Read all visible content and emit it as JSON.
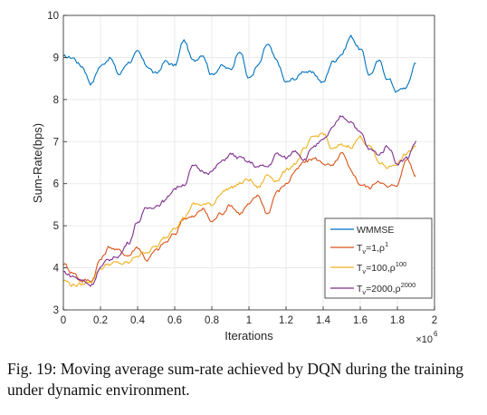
{
  "chart_data": {
    "type": "line",
    "xlabel": "Iterations",
    "ylabel": "Sum-Rate(bps)",
    "xlim": [
      0,
      2000000
    ],
    "ylim": [
      3,
      10
    ],
    "x_ticks": [
      "0",
      "0.2",
      "0.4",
      "0.6",
      "0.8",
      "1",
      "1.2",
      "1.4",
      "1.6",
      "1.8",
      "2"
    ],
    "y_ticks": [
      "3",
      "4",
      "5",
      "6",
      "7",
      "8",
      "9",
      "10"
    ],
    "x_multiplier": "×10",
    "x_multiplier_exp": "6",
    "grid": true,
    "legend_position": "bottom-right",
    "x": [
      0,
      50000,
      100000,
      150000,
      200000,
      250000,
      300000,
      350000,
      400000,
      450000,
      500000,
      550000,
      600000,
      650000,
      700000,
      750000,
      800000,
      850000,
      900000,
      950000,
      1000000,
      1050000,
      1100000,
      1150000,
      1200000,
      1250000,
      1300000,
      1350000,
      1400000,
      1450000,
      1500000,
      1550000,
      1600000,
      1650000,
      1700000,
      1750000,
      1800000,
      1850000,
      1900000
    ],
    "series": [
      {
        "name": "WMMSE",
        "legend": {
          "base": "WMMSE",
          "sub": "",
          "tail": "",
          "sup": ""
        },
        "color": "#0072BD",
        "values": [
          9.0,
          9.0,
          8.8,
          8.4,
          8.8,
          9.0,
          8.6,
          8.9,
          9.1,
          8.8,
          8.6,
          8.9,
          8.8,
          9.4,
          8.9,
          9.1,
          8.6,
          8.8,
          8.7,
          9.2,
          8.5,
          8.8,
          9.3,
          8.9,
          8.4,
          8.5,
          8.7,
          8.6,
          8.4,
          8.9,
          9.1,
          9.5,
          9.2,
          8.6,
          8.9,
          8.5,
          8.2,
          8.3,
          8.9
        ]
      },
      {
        "name": "T_v=1, ρ^1",
        "legend": {
          "base": "T",
          "sub": "v",
          "tail": "=1,ρ",
          "sup": "1"
        },
        "color": "#D95319",
        "values": [
          4.1,
          3.9,
          3.7,
          3.7,
          4.2,
          4.5,
          4.4,
          4.3,
          4.5,
          4.2,
          4.4,
          4.6,
          4.8,
          5.2,
          5.2,
          5.4,
          5.1,
          5.3,
          5.5,
          5.3,
          5.5,
          5.7,
          5.3,
          5.8,
          6.0,
          6.3,
          6.5,
          6.6,
          6.5,
          6.4,
          6.7,
          6.3,
          6.0,
          5.9,
          6.1,
          5.9,
          6.0,
          6.6,
          6.2
        ]
      },
      {
        "name": "T_v=100, ρ^100",
        "legend": {
          "base": "T",
          "sub": "v",
          "tail": "=100,ρ",
          "sup": "100"
        },
        "color": "#EDB120",
        "values": [
          3.7,
          3.6,
          3.6,
          3.7,
          4.0,
          4.1,
          4.1,
          4.1,
          4.3,
          4.4,
          4.5,
          4.7,
          5.0,
          5.2,
          5.5,
          5.5,
          5.5,
          5.8,
          5.9,
          6.0,
          6.1,
          5.9,
          6.2,
          6.1,
          6.3,
          6.5,
          6.8,
          7.1,
          7.2,
          6.8,
          6.9,
          6.9,
          7.1,
          6.9,
          6.5,
          6.4,
          6.5,
          6.7,
          6.9
        ]
      },
      {
        "name": "T_v=2000, ρ^2000",
        "legend": {
          "base": "T",
          "sub": "v",
          "tail": "=2000,ρ",
          "sup": "2000"
        },
        "color": "#7E2F8E",
        "values": [
          3.9,
          3.8,
          3.7,
          3.6,
          4.0,
          4.2,
          4.3,
          4.6,
          5.1,
          5.4,
          5.5,
          5.6,
          5.9,
          6.0,
          6.4,
          6.3,
          6.3,
          6.5,
          6.7,
          6.6,
          6.5,
          6.4,
          6.4,
          6.7,
          6.6,
          6.8,
          6.6,
          6.9,
          7.0,
          7.3,
          7.6,
          7.5,
          7.2,
          6.8,
          6.7,
          6.9,
          6.5,
          6.6,
          7.0
        ]
      }
    ]
  },
  "caption": "Fig. 19: Moving average sum-rate achieved by DQN during the training under dynamic environment."
}
